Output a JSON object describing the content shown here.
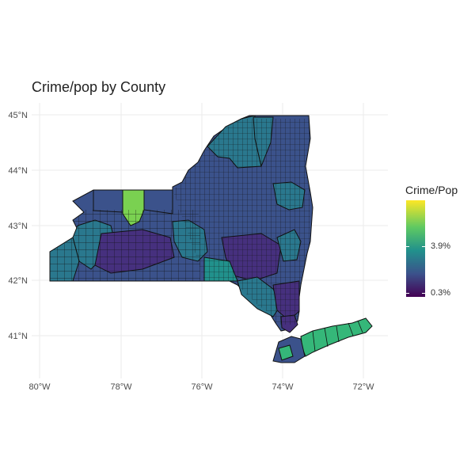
{
  "title": "Crime/pop by County",
  "legend": {
    "title": "Crime/Pop",
    "ticks": [
      "3.9%",
      "0.3%"
    ],
    "gradient": [
      "#fde725",
      "#5ec962",
      "#21918c",
      "#3b528b",
      "#440154"
    ]
  },
  "axes": {
    "x_ticks": [
      "80°W",
      "78°W",
      "76°W",
      "74°W",
      "72°W"
    ],
    "y_ticks": [
      "45°N",
      "44°N",
      "43°N",
      "42°N",
      "41°N"
    ]
  },
  "colors": {
    "low": "#3b528b",
    "lowest": "#46307e",
    "mid": "#2a788e",
    "high": "#35b779",
    "highest": "#7ad151",
    "grid": "#ebebeb",
    "border": "#111111"
  }
}
